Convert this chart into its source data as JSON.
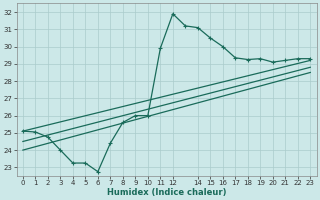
{
  "xlabel": "Humidex (Indice chaleur)",
  "xlim": [
    -0.5,
    23.5
  ],
  "ylim": [
    22.5,
    32.5
  ],
  "xtick_labels": [
    "0",
    "1",
    "2",
    "3",
    "4",
    "5",
    "6",
    "7",
    "8",
    "9",
    "1011",
    "12",
    "",
    "14",
    "15",
    "16",
    "17",
    "18",
    "19",
    "20",
    "21",
    "22",
    "23"
  ],
  "xtick_positions": [
    0,
    1,
    2,
    3,
    4,
    5,
    6,
    7,
    8,
    9,
    10,
    12,
    13,
    14,
    15,
    16,
    17,
    18,
    19,
    20,
    21,
    22,
    23
  ],
  "yticks": [
    23,
    24,
    25,
    26,
    27,
    28,
    29,
    30,
    31,
    32
  ],
  "bg_color": "#cce8e8",
  "grid_color": "#aacccc",
  "line_color": "#1a6b5a",
  "main_x": [
    0,
    1,
    2,
    3,
    4,
    5,
    6,
    7,
    8,
    9,
    10,
    11,
    12,
    13,
    14,
    15,
    16,
    17,
    18,
    19,
    20,
    21,
    22,
    23
  ],
  "main_y": [
    25.1,
    25.05,
    24.75,
    24.0,
    23.25,
    23.25,
    22.75,
    24.4,
    25.6,
    26.0,
    26.0,
    29.9,
    31.9,
    31.2,
    31.1,
    30.5,
    30.0,
    29.35,
    29.25,
    29.3,
    29.1,
    29.2,
    29.3,
    29.3
  ],
  "line2_x": [
    0,
    23
  ],
  "line2_y": [
    25.1,
    29.2
  ],
  "line3_x": [
    0,
    23
  ],
  "line3_y": [
    24.5,
    28.8
  ],
  "line4_x": [
    0,
    23
  ],
  "line4_y": [
    24.0,
    28.5
  ]
}
